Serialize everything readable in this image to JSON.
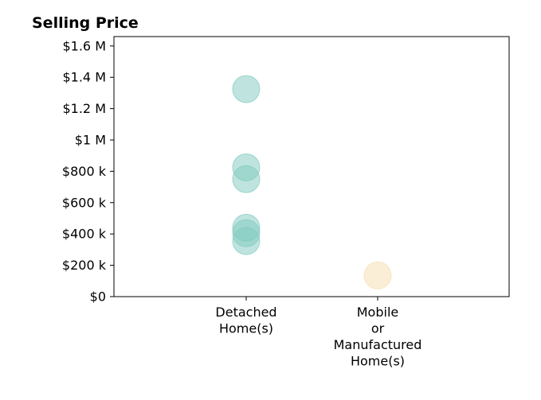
{
  "chart_data": {
    "type": "scatter",
    "title": "Selling Price",
    "xlabel": "",
    "ylabel": "",
    "categories": [
      [
        "Detached",
        "Home(s)"
      ],
      [
        "Mobile",
        "or",
        "Manufactured",
        "Home(s)"
      ]
    ],
    "y_ticks": [
      0,
      200000,
      400000,
      600000,
      800000,
      1000000,
      1200000,
      1400000,
      1600000
    ],
    "y_tick_labels": [
      "$0",
      "$200 k",
      "$400 k",
      "$600 k",
      "$800 k",
      "$1 M",
      "$1.2 M",
      "$1.4 M",
      "$1.6 M"
    ],
    "ylim": [
      0,
      1660000
    ],
    "grid": false,
    "points": [
      {
        "category": 0,
        "y": 1325000,
        "color": "#80c9bf"
      },
      {
        "category": 0,
        "y": 825000,
        "color": "#80c9bf"
      },
      {
        "category": 0,
        "y": 750000,
        "color": "#80c9bf"
      },
      {
        "category": 0,
        "y": 440000,
        "color": "#80c9bf"
      },
      {
        "category": 0,
        "y": 405000,
        "color": "#80c9bf"
      },
      {
        "category": 0,
        "y": 355000,
        "color": "#80c9bf"
      },
      {
        "category": 1,
        "y": 135000,
        "color": "#f5deb0"
      }
    ]
  }
}
